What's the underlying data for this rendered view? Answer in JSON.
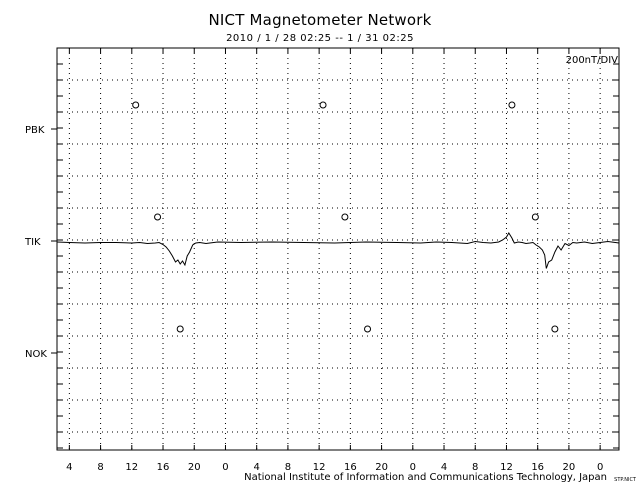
{
  "chart_data": {
    "type": "line",
    "title": "NICT Magnetometer Network",
    "subtitle": "2010 / 1 / 28   02:25 --  1 / 31   02:25",
    "scale_label": "200nT/DIV",
    "xlabel": "",
    "ylabel": "",
    "x_tick_labels": [
      "4",
      "8",
      "12",
      "16",
      "20",
      "0",
      "4",
      "8",
      "12",
      "16",
      "20",
      "0",
      "4",
      "8",
      "12",
      "16",
      "20",
      "0"
    ],
    "xlim_hours": [
      2.4167,
      74.4167
    ],
    "stations": [
      {
        "name": "PBK",
        "labeled": true
      },
      {
        "name": "TIK",
        "labeled": true
      },
      {
        "name": "NOK",
        "labeled": true
      }
    ],
    "circle_markers_hours": {
      "PBK": [
        12.5,
        36.5,
        60.7
      ],
      "TIK": [
        15.3,
        39.3,
        63.7
      ],
      "NOK": [
        18.2,
        42.2,
        66.2
      ]
    },
    "series": [
      {
        "name": "TIK",
        "x_hours": [
          2.42,
          4,
          6,
          8,
          10,
          12,
          13,
          14,
          15,
          15.5,
          16,
          16.4,
          16.8,
          17.2,
          17.6,
          17.9,
          18.2,
          18.5,
          18.8,
          19.1,
          19.4,
          19.8,
          20.2,
          20.7,
          21.5,
          23,
          26,
          30,
          34,
          38,
          42,
          46,
          49,
          51,
          53,
          55,
          56,
          57,
          58,
          59,
          59.5,
          60,
          60.3,
          60.7,
          61,
          61.5,
          62,
          62.5,
          63,
          63.4,
          63.8,
          64.2,
          64.6,
          64.9,
          65.1,
          65.4,
          65.8,
          66.2,
          66.6,
          67,
          67.5,
          68,
          68.5,
          69,
          70,
          71,
          72,
          73,
          74.42
        ],
        "values": [
          -2,
          -3,
          -4,
          -3,
          -3,
          -4,
          -3,
          -5,
          -4,
          -3,
          -7,
          -12,
          -20,
          -30,
          -42,
          -38,
          -46,
          -40,
          -48,
          -30,
          -22,
          -8,
          -4,
          -3,
          -5,
          -2,
          -3,
          -2,
          -3,
          -4,
          -2,
          -3,
          -4,
          -2,
          -3,
          -5,
          -1,
          -3,
          -4,
          -2,
          2,
          8,
          16,
          6,
          -4,
          -2,
          -3,
          -5,
          -4,
          -3,
          -8,
          -12,
          -18,
          -28,
          -55,
          -42,
          -38,
          -22,
          -10,
          -18,
          -5,
          -9,
          -3,
          -4,
          -2,
          -5,
          -3,
          -1,
          -4
        ]
      }
    ]
  },
  "footer": {
    "credit": "National Institute of Information and Communications Technology, Japan",
    "mark": "STP.NICT"
  }
}
